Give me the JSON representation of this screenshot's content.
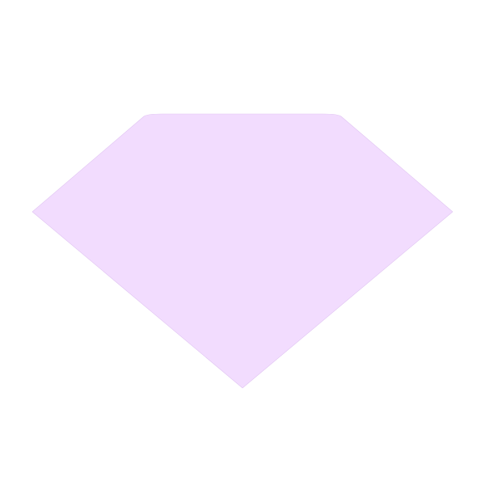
{
  "icons": {
    "main": "diamond-icon"
  },
  "colors": {
    "background": "#ffffff",
    "gem_fill": "#f2dcfe",
    "gem_outline": "#e0c4f2"
  }
}
